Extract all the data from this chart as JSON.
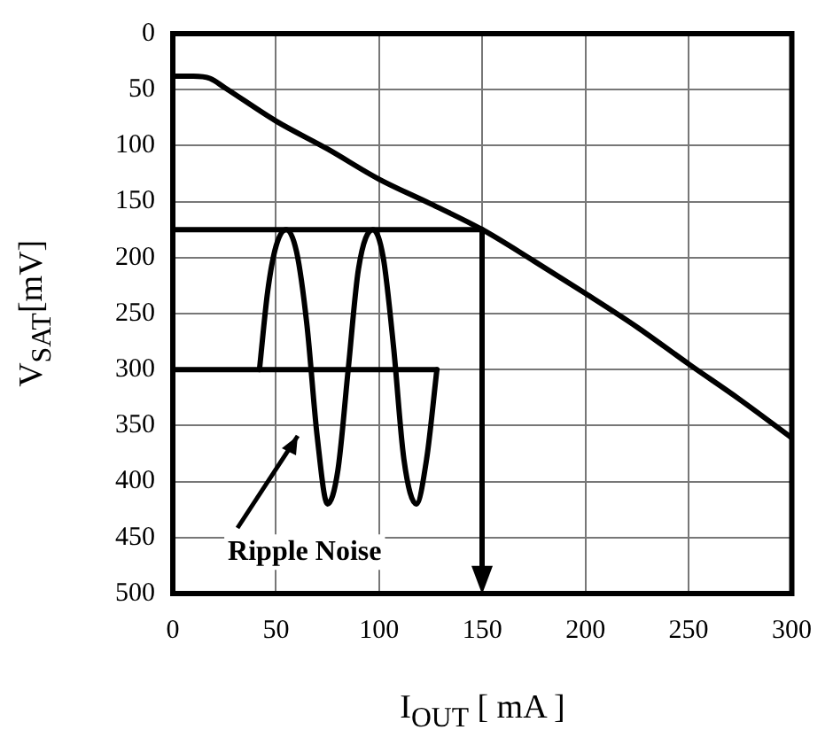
{
  "chart_data": {
    "type": "line",
    "xlabel": "I$_{OUT}$ [ mA ]",
    "ylabel": "V$_{SAT}$[mV]",
    "xlim": [
      0,
      300
    ],
    "xticks": [
      0,
      50,
      100,
      150,
      200,
      250,
      300
    ],
    "ylim": [
      500,
      0
    ],
    "yticks": [
      0,
      50,
      100,
      150,
      200,
      250,
      300,
      350,
      400,
      450,
      500
    ],
    "grid": true,
    "legend": false,
    "marker": "none",
    "line_style": "solid",
    "annotations": [
      "Ripple Noise"
    ],
    "series": [
      {
        "color": "#000000",
        "x": [
          0,
          10,
          18,
          25,
          50,
          75,
          100,
          125,
          150,
          175,
          200,
          225,
          250,
          275,
          300
        ],
        "values": [
          38,
          38,
          40,
          48,
          78,
          103,
          130,
          152,
          175,
          203,
          232,
          262,
          295,
          327,
          361
        ]
      },
      {
        "color": "#000000",
        "x": [
          42,
          46,
          50,
          55,
          60,
          65,
          70,
          75,
          80,
          85,
          90,
          97,
          102,
          107,
          112,
          118,
          123,
          128
        ],
        "values": [
          300,
          230,
          190,
          175,
          195,
          260,
          360,
          420,
          390,
          300,
          210,
          175,
          200,
          280,
          380,
          420,
          380,
          300
        ]
      },
      {
        "color": "#000000",
        "x": [
          0,
          150
        ],
        "values": [
          175,
          175
        ]
      },
      {
        "color": "#000000",
        "x": [
          0,
          128
        ],
        "values": [
          300,
          300
        ]
      }
    ]
  }
}
